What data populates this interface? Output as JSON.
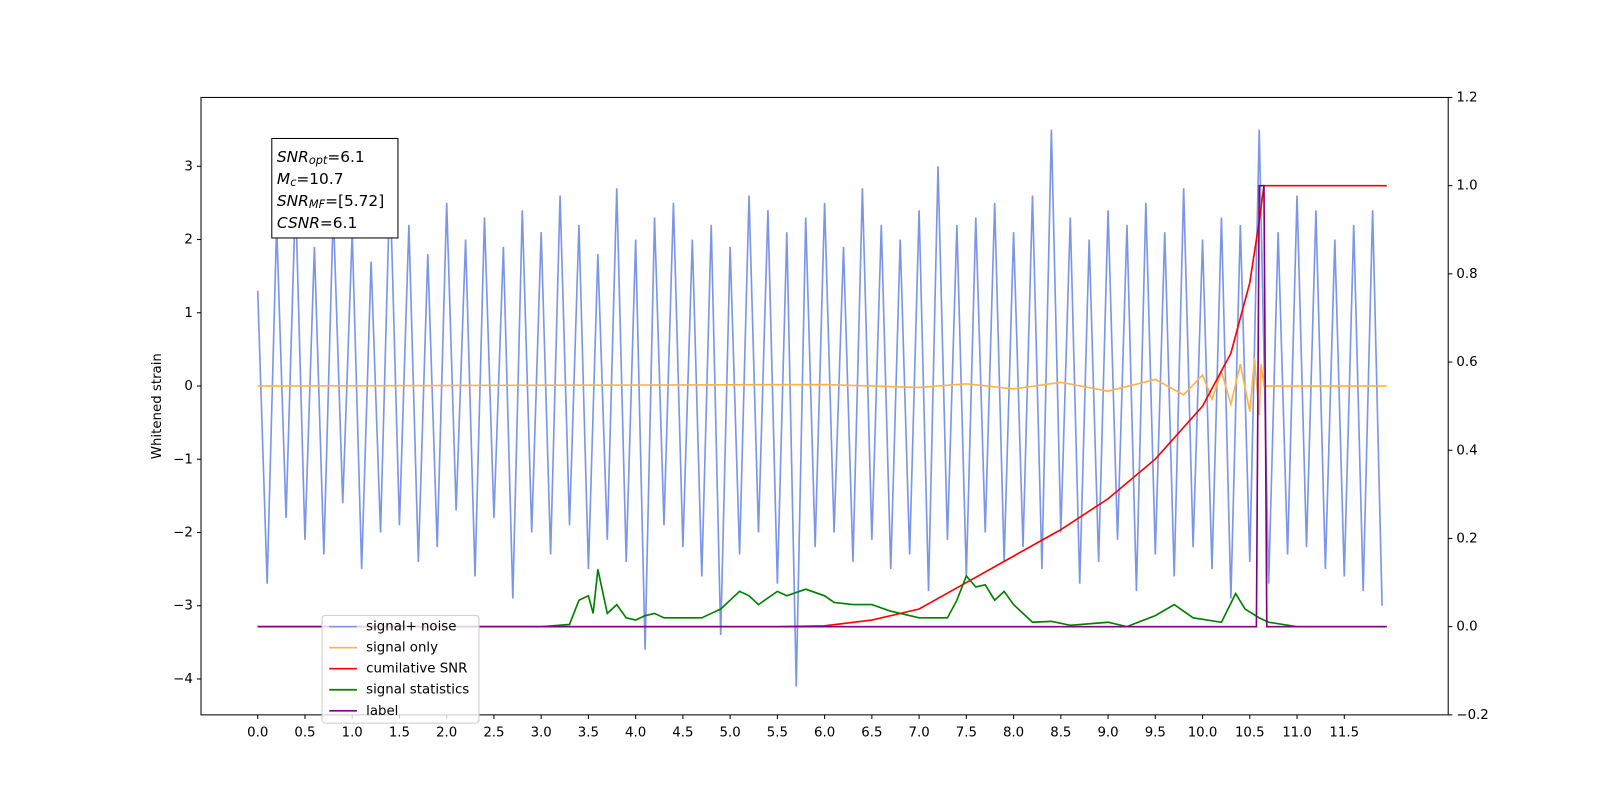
{
  "chart_data": {
    "type": "line",
    "ylabel": "Whitened strain",
    "xlim": [
      -0.6,
      12.6
    ],
    "ylim": [
      -4.49,
      3.94
    ],
    "y2lim": [
      -0.2,
      1.2
    ],
    "xticks": [
      {
        "value": 0,
        "label": "0.0"
      },
      {
        "value": 0.5,
        "label": "0.5"
      },
      {
        "value": 1,
        "label": "1.0"
      },
      {
        "value": 1.5,
        "label": "1.5"
      },
      {
        "value": 2,
        "label": "2.0"
      },
      {
        "value": 2.5,
        "label": "2.5"
      },
      {
        "value": 3,
        "label": "3.0"
      },
      {
        "value": 3.5,
        "label": "3.5"
      },
      {
        "value": 4,
        "label": "4.0"
      },
      {
        "value": 4.5,
        "label": "4.5"
      },
      {
        "value": 5,
        "label": "5.0"
      },
      {
        "value": 5.5,
        "label": "5.5"
      },
      {
        "value": 6,
        "label": "6.0"
      },
      {
        "value": 6.5,
        "label": "6.5"
      },
      {
        "value": 7,
        "label": "7.0"
      },
      {
        "value": 7.5,
        "label": "7.5"
      },
      {
        "value": 8,
        "label": "8.0"
      },
      {
        "value": 8.5,
        "label": "8.5"
      },
      {
        "value": 9,
        "label": "9.0"
      },
      {
        "value": 9.5,
        "label": "9.5"
      },
      {
        "value": 10,
        "label": "10.0"
      },
      {
        "value": 10.5,
        "label": "10.5"
      },
      {
        "value": 11,
        "label": "11.0"
      },
      {
        "value": 11.5,
        "label": "11.5"
      }
    ],
    "yticks": [
      {
        "value": -4,
        "label": "−4"
      },
      {
        "value": -3,
        "label": "−3"
      },
      {
        "value": -2,
        "label": "−2"
      },
      {
        "value": -1,
        "label": "−1"
      },
      0,
      1,
      2,
      3
    ],
    "y2ticks": [
      {
        "value": -0.2,
        "label": "−0.2"
      },
      {
        "value": 0,
        "label": "0.0"
      },
      {
        "value": 0.2,
        "label": "0.2"
      },
      {
        "value": 0.4,
        "label": "0.4"
      },
      {
        "value": 0.6,
        "label": "0.6"
      },
      {
        "value": 0.8,
        "label": "0.8"
      },
      {
        "value": 1,
        "label": "1.0"
      },
      {
        "value": 1.2,
        "label": "1.2"
      }
    ],
    "legend": "lower left",
    "annotation": [
      {
        "main": "SNR",
        "sub": "opt",
        "rest": "=6.1"
      },
      {
        "main": "M",
        "sub": "c",
        "rest": "=10.7"
      },
      {
        "main": "SNR",
        "sub": "MF",
        "rest": "=[5.72]"
      },
      {
        "main": "CSNR",
        "sub": "",
        "rest": "=6.1"
      }
    ],
    "series": [
      {
        "name": "signal+ noise",
        "color": "#7b96e8",
        "x": [
          0,
          0.1,
          0.2,
          0.3,
          0.4,
          0.5,
          0.6,
          0.7,
          0.8,
          0.9,
          1,
          1.1,
          1.2,
          1.3,
          1.4,
          1.5,
          1.6,
          1.7,
          1.8,
          1.9,
          2,
          2.1,
          2.2,
          2.3,
          2.4,
          2.5,
          2.6,
          2.7,
          2.8,
          2.9,
          3,
          3.1,
          3.2,
          3.3,
          3.4,
          3.5,
          3.6,
          3.7,
          3.8,
          3.9,
          4,
          4.1,
          4.2,
          4.3,
          4.4,
          4.5,
          4.6,
          4.7,
          4.8,
          4.9,
          5,
          5.1,
          5.2,
          5.3,
          5.4,
          5.5,
          5.6,
          5.7,
          5.8,
          5.9,
          6,
          6.1,
          6.2,
          6.3,
          6.4,
          6.5,
          6.6,
          6.7,
          6.8,
          6.9,
          7,
          7.1,
          7.2,
          7.3,
          7.4,
          7.5,
          7.6,
          7.7,
          7.8,
          7.9,
          8,
          8.1,
          8.2,
          8.3,
          8.4,
          8.5,
          8.6,
          8.7,
          8.8,
          8.9,
          9,
          9.1,
          9.2,
          9.3,
          9.4,
          9.5,
          9.6,
          9.7,
          9.8,
          9.9,
          10,
          10.1,
          10.2,
          10.3,
          10.4,
          10.5,
          10.6,
          10.7,
          10.8,
          10.9,
          11,
          11.1,
          11.2,
          11.3,
          11.4,
          11.5,
          11.6,
          11.7,
          11.8,
          11.9
        ],
        "values": [
          1.3,
          -2.7,
          2.2,
          -1.8,
          2.6,
          -2.1,
          1.9,
          -2.3,
          2.4,
          -1.6,
          2.1,
          -2.5,
          1.7,
          -2.0,
          2.8,
          -1.9,
          2.2,
          -2.4,
          1.8,
          -2.2,
          2.5,
          -1.7,
          2.0,
          -2.6,
          2.3,
          -1.8,
          1.9,
          -2.9,
          2.4,
          -2.0,
          2.1,
          -2.3,
          2.6,
          -1.9,
          2.2,
          -2.5,
          1.8,
          -2.1,
          2.7,
          -2.4,
          2.0,
          -3.6,
          2.3,
          -1.9,
          2.5,
          -2.2,
          2.0,
          -2.6,
          2.2,
          -3.4,
          1.9,
          -2.3,
          2.6,
          -2.0,
          2.4,
          -2.7,
          2.1,
          -4.1,
          2.3,
          -2.2,
          2.5,
          -2.0,
          1.9,
          -2.4,
          2.7,
          -2.1,
          2.2,
          -2.5,
          2.0,
          -2.3,
          2.4,
          -2.8,
          3.0,
          -2.1,
          2.2,
          -2.6,
          2.3,
          -2.0,
          2.5,
          -2.4,
          2.1,
          -2.2,
          2.6,
          -2.5,
          3.5,
          -2.0,
          2.3,
          -2.7,
          2.0,
          -2.4,
          2.4,
          -2.1,
          2.2,
          -2.8,
          2.5,
          -2.3,
          2.1,
          -2.6,
          2.7,
          -2.2,
          2.0,
          -2.5,
          2.3,
          -2.9,
          2.2,
          -2.4,
          3.5,
          -2.7,
          2.1,
          -2.3,
          2.6,
          -2.2,
          2.4,
          -2.5,
          2.0,
          -2.6,
          2.2,
          -2.8,
          2.4,
          -3.0
        ]
      },
      {
        "name": "signal only",
        "color": "#ffb347",
        "x": [
          0,
          6,
          7,
          7.5,
          8,
          8.5,
          9,
          9.5,
          9.8,
          10,
          10.1,
          10.2,
          10.3,
          10.4,
          10.5,
          10.55,
          10.6,
          10.62,
          10.65,
          11.95
        ],
        "values": [
          0,
          0.02,
          -0.02,
          0.03,
          -0.04,
          0.05,
          -0.07,
          0.09,
          -0.12,
          0.15,
          -0.18,
          0.2,
          -0.25,
          0.3,
          -0.35,
          0.38,
          -0.4,
          0.3,
          0,
          0
        ]
      },
      {
        "name": "cumilative SNR",
        "color": "red",
        "axis": "y2",
        "x": [
          0,
          5.5,
          6,
          6.5,
          7,
          7.5,
          8,
          8.5,
          9,
          9.5,
          10,
          10.3,
          10.5,
          10.6,
          10.65,
          11.95
        ],
        "values": [
          0,
          0,
          0.002,
          0.015,
          0.04,
          0.1,
          0.16,
          0.22,
          0.29,
          0.38,
          0.5,
          0.62,
          0.78,
          0.92,
          1,
          1
        ]
      },
      {
        "name": "signal statistics",
        "color": "green",
        "axis": "y2",
        "x": [
          0,
          3,
          3.3,
          3.4,
          3.5,
          3.55,
          3.6,
          3.7,
          3.8,
          3.9,
          4,
          4.1,
          4.2,
          4.3,
          4.5,
          4.7,
          4.8,
          4.9,
          5,
          5.1,
          5.2,
          5.3,
          5.5,
          5.6,
          5.8,
          6,
          6.1,
          6.3,
          6.5,
          6.7,
          7,
          7.3,
          7.4,
          7.5,
          7.6,
          7.7,
          7.8,
          7.9,
          8,
          8.2,
          8.4,
          8.6,
          9,
          9.2,
          9.5,
          9.7,
          9.9,
          10.2,
          10.35,
          10.45,
          10.6,
          10.7,
          11,
          11.95
        ],
        "values": [
          0,
          0,
          0.005,
          0.06,
          0.07,
          0.03,
          0.13,
          0.03,
          0.05,
          0.02,
          0.015,
          0.025,
          0.03,
          0.02,
          0.02,
          0.02,
          0.03,
          0.04,
          0.06,
          0.08,
          0.07,
          0.05,
          0.08,
          0.07,
          0.085,
          0.07,
          0.055,
          0.05,
          0.05,
          0.035,
          0.02,
          0.02,
          0.06,
          0.115,
          0.09,
          0.095,
          0.06,
          0.08,
          0.05,
          0.01,
          0.012,
          0.003,
          0.01,
          0,
          0.025,
          0.05,
          0.02,
          0.01,
          0.075,
          0.04,
          0.02,
          0.01,
          0,
          0
        ]
      },
      {
        "name": "label",
        "color": "purple",
        "axis": "y2",
        "x": [
          0,
          10.57,
          10.6,
          10.65,
          10.68,
          11.95
        ],
        "values": [
          0,
          0,
          1,
          1,
          0,
          0
        ]
      }
    ]
  }
}
